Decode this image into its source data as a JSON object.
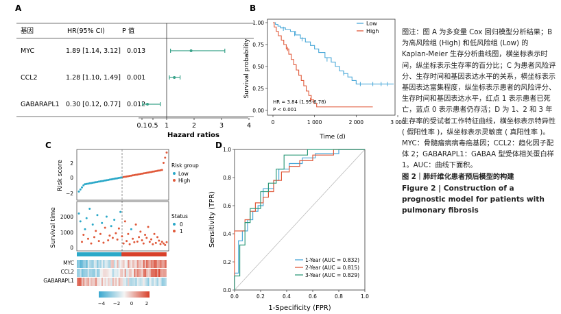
{
  "panel_a": {
    "letter": "A",
    "headers": [
      "基因",
      "HR(95% CI)",
      "P 值"
    ],
    "rows": [
      {
        "gene": "MYC",
        "hr_ci": "1.89 [1.14, 3.12]",
        "p": "0.013",
        "hr": 1.89,
        "lo": 1.14,
        "hi": 3.12
      },
      {
        "gene": "CCL2",
        "hr_ci": "1.28 [1.10, 1.49]",
        "p": "0.001",
        "hr": 1.28,
        "lo": 1.1,
        "hi": 1.49
      },
      {
        "gene": "GABARAPL1",
        "hr_ci": "0.30 [0.12, 0.77]",
        "p": "0.012",
        "hr": 0.3,
        "lo": 0.12,
        "hi": 0.77
      }
    ],
    "xticks": [
      "0.1",
      "0.5",
      "1",
      "2",
      "3",
      "4"
    ],
    "xtick_values": [
      0.1,
      0.5,
      1,
      2,
      3,
      4
    ],
    "xlabel": "Hazard ratios",
    "color": "#3aa38a"
  },
  "panel_b": {
    "letter": "B",
    "ylabel": "Survival probability",
    "xlabel": "Time (d)",
    "xticks": [
      "0",
      "1 000",
      "2 000",
      "3 000"
    ],
    "yticks": [
      "0.00",
      "0.25",
      "0.50",
      "0.75",
      "1.00"
    ],
    "annotation_hr": "HR = 3.84 (1.95-6.78)",
    "annotation_p": "P < 0.001",
    "legend": [
      {
        "label": "Low",
        "color": "#4aa8d8"
      },
      {
        "label": "High",
        "color": "#e0593a"
      }
    ]
  },
  "panel_c": {
    "letter": "C",
    "risk_ylabel": "Risk score",
    "risk_yticks": [
      "2",
      "0",
      "−2"
    ],
    "risk_legend_title": "Risk group",
    "risk_legend": [
      {
        "label": "Low",
        "color": "#2aa8c8"
      },
      {
        "label": "High",
        "color": "#e0593a"
      }
    ],
    "time_ylabel": "Survival time",
    "time_yticks": [
      "2000",
      "1000",
      "0"
    ],
    "status_legend_title": "Status",
    "status_legend": [
      {
        "label": "0",
        "color": "#2aa8c8"
      },
      {
        "label": "1",
        "color": "#e0593a"
      }
    ],
    "genes": [
      "MYC",
      "CCL2",
      "GABARAPL1"
    ],
    "colorbar_ticks": [
      "−4",
      "−2",
      "0",
      "2"
    ]
  },
  "panel_d": {
    "letter": "D",
    "ylabel": "Sensitivity (TPR)",
    "xlabel": "1-Specificity (FPR)",
    "ticks": [
      "0.0",
      "0.2",
      "0.4",
      "0.6",
      "0.8",
      "1.0"
    ],
    "legend": [
      {
        "label": "1-Year (AUC = 0.832)",
        "color": "#4aa8d8"
      },
      {
        "label": "2-Year (AUC = 0.815)",
        "color": "#e0593a"
      },
      {
        "label": "3-Year (AUC = 0.829)",
        "color": "#2e9a7a"
      }
    ]
  },
  "caption": {
    "cn_body": "图注：图 A 为多变量 Cox 回归模型分析结果；B 为高风险组 (High) 和低风险组 (Low) 的 Kaplan-Meier 生存分析曲线图，横坐标表示时间，纵坐标表示生存率的百分比；C 为患者风险评分、生存时间和基因表达水平的关系，横坐标表示基因表达富集程度，纵坐标表示患者的风险评分、生存时间和基因表达水平，红点 1 表示患者已死亡，蓝点 0 表示患者仍存活；D 为 1、2 和 3 年生存率的受试者工作特征曲线，横坐标表示特异性 ( 假阳性率 )，纵坐标表示灵敏度 ( 真阳性率 )。MYC：骨髓瘤病病毒癌基因；CCL2：趋化因子配体 2；GABARAPL1：GABAA 型受体相关蛋白样 1。AUC：曲线下面积。",
    "cn_title": "图 2｜肺纤维化患者预后模型的构建",
    "en_title": "Figure 2 | Construction of a prognostic model for patients with pulmonary fibrosis"
  }
}
